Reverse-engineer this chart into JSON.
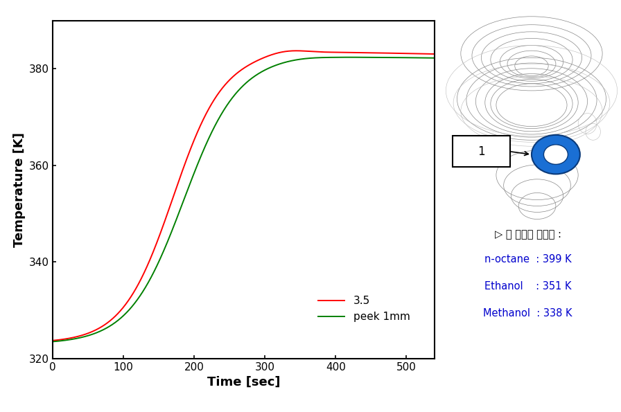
{
  "xlabel": "Time [sec]",
  "ylabel": "Temperature [K]",
  "xlim": [
    0,
    540
  ],
  "ylim": [
    320,
    390
  ],
  "yticks": [
    320,
    340,
    360,
    380
  ],
  "xticks": [
    0,
    100,
    200,
    300,
    400,
    500
  ],
  "legend_labels": [
    "3.5",
    "peek 1mm"
  ],
  "line1_color": "red",
  "line2_color": "green",
  "annotation_title": "▷ 각 연료의 끓는점 :",
  "annotation_lines": [
    "n-octane  : 399 K",
    "Ethanol    : 351 K",
    "Methanol  : 338 K"
  ],
  "annotation_color": "#0000cd",
  "bg_color": "white",
  "plot_bg_color": "white",
  "T_start": 323.2,
  "T_plateau_red": 383.5,
  "T_plateau_green": 382.5,
  "rise_start": 30,
  "rise_end": 310
}
